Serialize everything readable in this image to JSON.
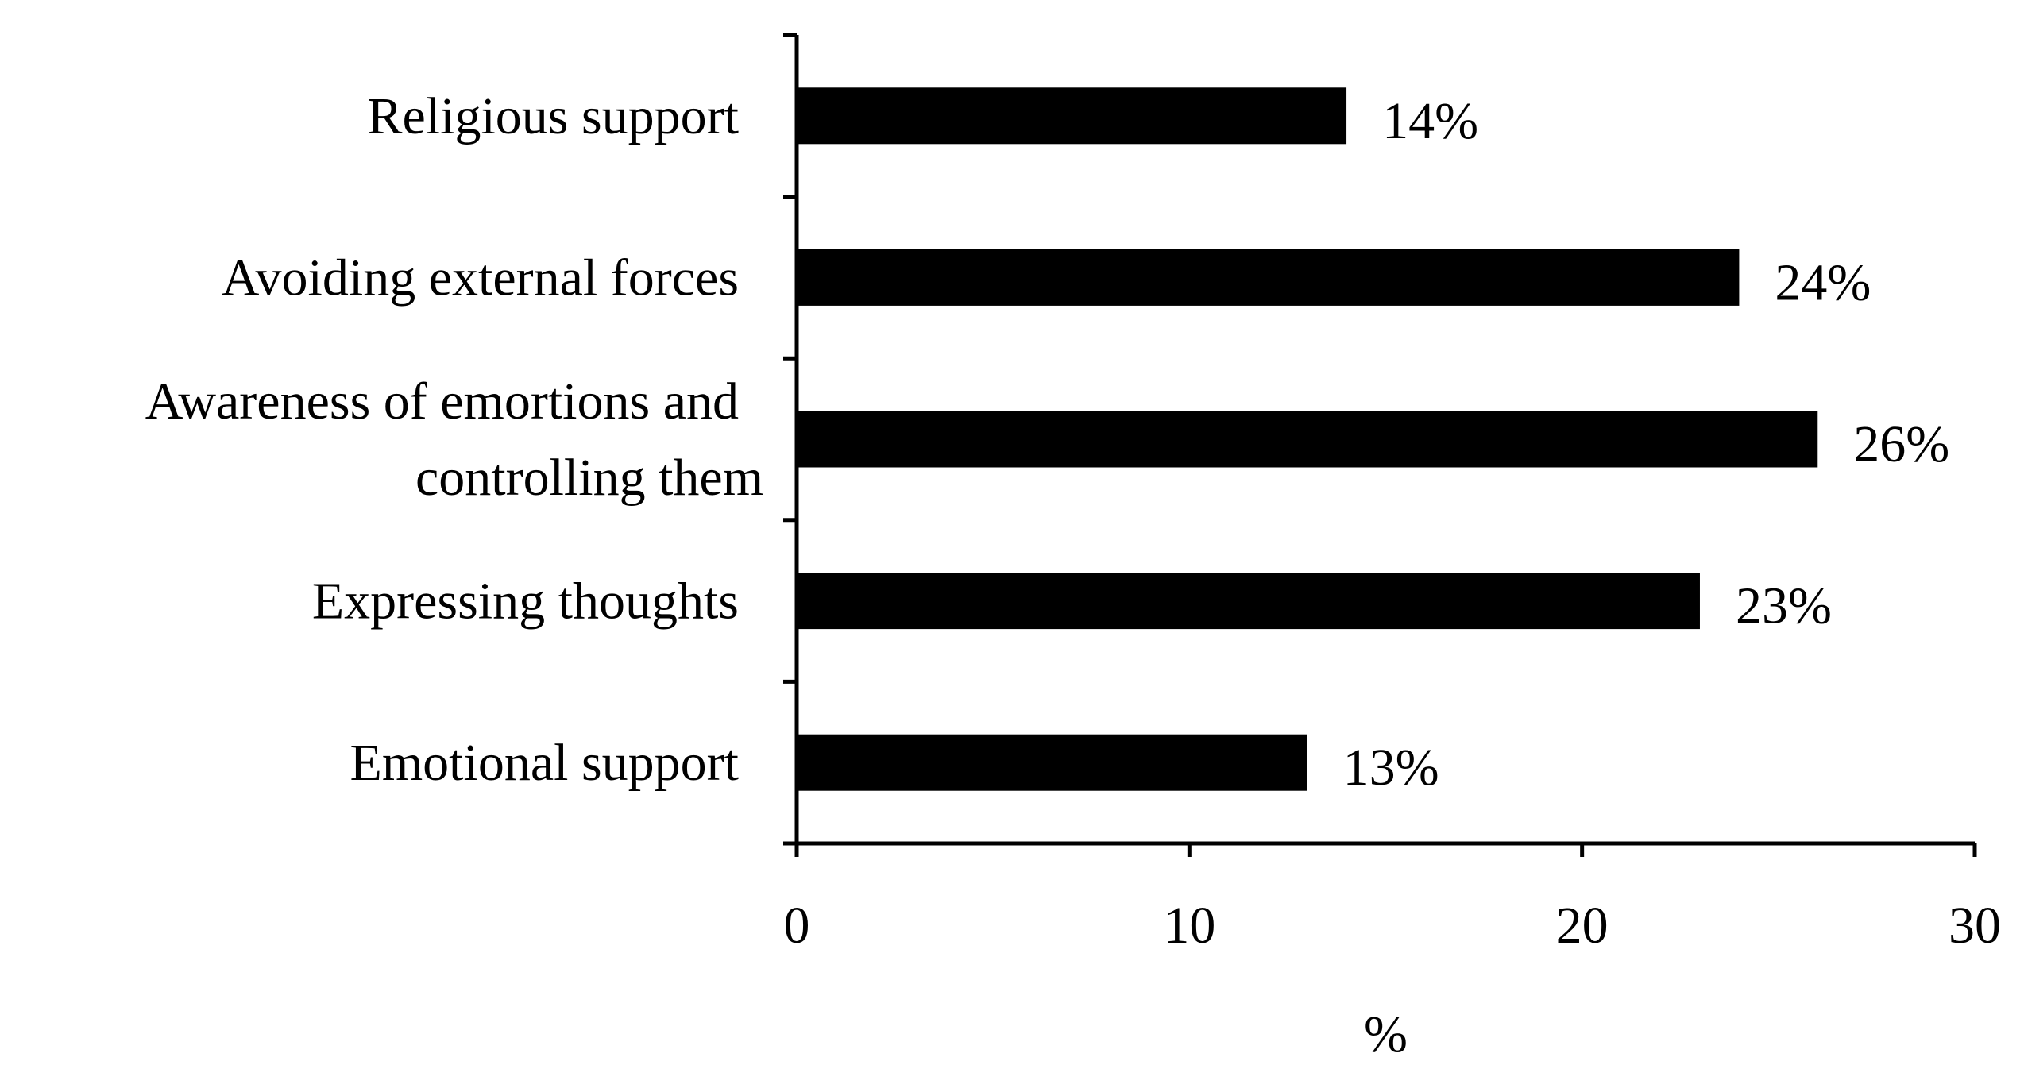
{
  "chart_data": {
    "type": "bar",
    "orientation": "horizontal",
    "title": "",
    "xlabel": "%",
    "ylabel": "",
    "xlim": [
      0,
      30
    ],
    "x_ticks": [
      0,
      10,
      20,
      30
    ],
    "grid": false,
    "legend": "none",
    "categories": [
      [
        "Religious support"
      ],
      [
        "Avoiding external forces"
      ],
      [
        "Awareness of emortions and",
        "controlling them"
      ],
      [
        "Expressing thoughts"
      ],
      [
        "Emotional support"
      ]
    ],
    "values": [
      14,
      24,
      26,
      23,
      13
    ],
    "data_labels": [
      "14%",
      "24%",
      "26%",
      "23%",
      "13%"
    ],
    "bar_color": "#000000"
  }
}
